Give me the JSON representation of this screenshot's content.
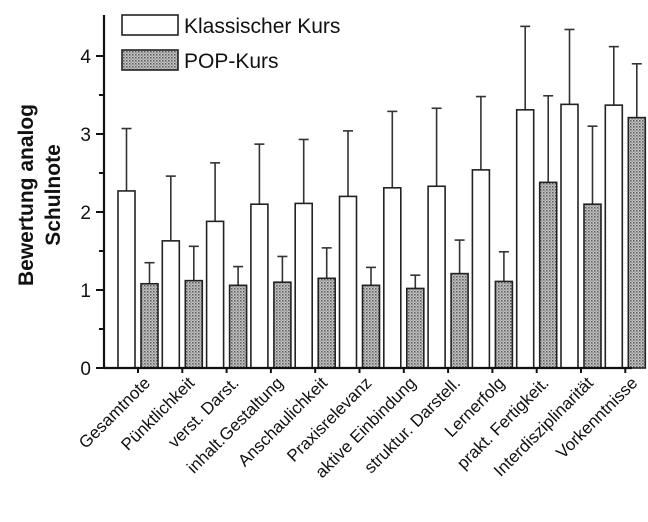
{
  "chart_data": {
    "type": "bar",
    "ylabel": [
      "Bewertung analog",
      "Schulnote"
    ],
    "ylim": [
      0,
      4.5
    ],
    "yticks": [
      0,
      1,
      2,
      3,
      4
    ],
    "legend_position": "top-left",
    "categories": [
      "Gesamtnote",
      "Pünktlichkeit",
      "verst. Darst.",
      "inhalt.Gestaltung",
      "Anschaulichkeit",
      "Praxisrelevanz",
      "aktive Einbindung",
      "struktur. Darstell.",
      "Lernerfolg",
      "prakt. Fertigkeit.",
      "Interdisziplinarität",
      "Vorkenntnisse"
    ],
    "series": [
      {
        "name": "Klassischer Kurs",
        "values": [
          2.27,
          1.63,
          1.88,
          2.1,
          2.11,
          2.2,
          2.31,
          2.33,
          2.54,
          3.31,
          3.38,
          3.37
        ],
        "errors": [
          0.8,
          0.83,
          0.75,
          0.77,
          0.82,
          0.84,
          0.98,
          1.0,
          0.94,
          1.07,
          0.96,
          0.75
        ]
      },
      {
        "name": "POP-Kurs",
        "values": [
          1.08,
          1.12,
          1.06,
          1.1,
          1.15,
          1.06,
          1.02,
          1.21,
          1.11,
          2.38,
          2.1,
          3.21
        ],
        "errors": [
          0.27,
          0.44,
          0.24,
          0.33,
          0.39,
          0.23,
          0.17,
          0.43,
          0.38,
          1.11,
          1.0,
          0.69
        ]
      }
    ],
    "colors": {
      "series_a_fill": "#ffffff",
      "series_b_fill": "#9a9a9a",
      "stroke": "#222222"
    }
  }
}
